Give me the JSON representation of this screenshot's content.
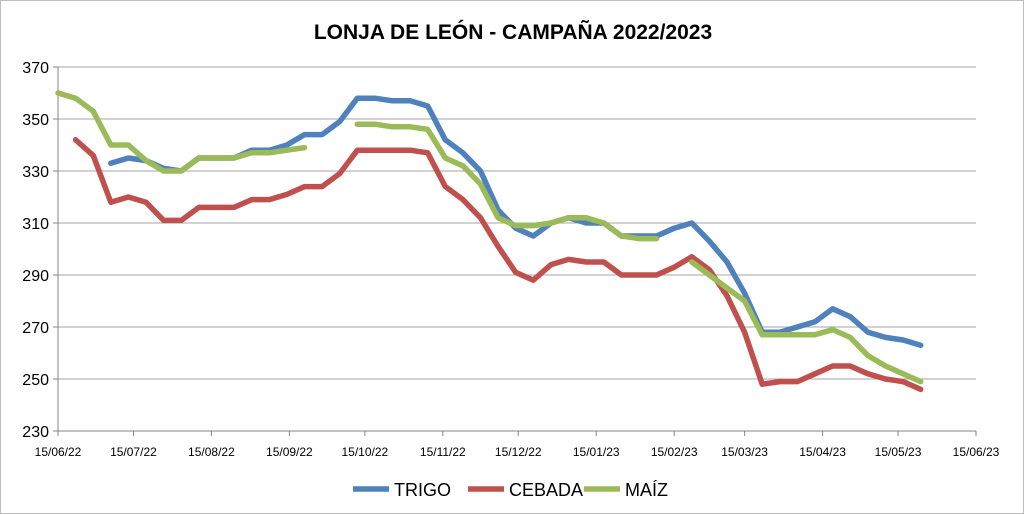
{
  "chart_data": {
    "type": "line",
    "title": "LONJA DE LEÓN - CAMPAÑA 2022/2023",
    "xlabel": "",
    "ylabel": "",
    "x_axis": {
      "type": "date",
      "range": [
        "2022-06-15",
        "2023-06-15"
      ],
      "ticks": [
        "2022-06-15",
        "2022-07-15",
        "2022-08-15",
        "2022-09-15",
        "2022-10-15",
        "2022-11-15",
        "2022-12-15",
        "2023-01-15",
        "2023-02-15",
        "2023-03-15",
        "2023-04-15",
        "2023-05-15",
        "2023-06-15"
      ],
      "tick_labels": [
        "15/06/22",
        "15/07/22",
        "15/08/22",
        "15/09/22",
        "15/10/22",
        "15/11/22",
        "15/12/22",
        "15/01/23",
        "15/02/23",
        "15/03/23",
        "15/04/23",
        "15/05/23",
        "15/06/23"
      ]
    },
    "y_axis": {
      "range": [
        230,
        370
      ],
      "ticks": [
        230,
        250,
        270,
        290,
        310,
        330,
        350,
        370
      ]
    },
    "grid": "horizontal",
    "legend_position": "bottom",
    "series": [
      {
        "name": "TRIGO",
        "color": "#4f81bd",
        "points": [
          [
            "2022-07-06",
            333
          ],
          [
            "2022-07-13",
            335
          ],
          [
            "2022-07-20",
            334
          ],
          [
            "2022-07-27",
            331
          ],
          [
            "2022-08-03",
            330
          ],
          [
            "2022-08-10",
            335
          ],
          [
            "2022-08-17",
            335
          ],
          [
            "2022-08-24",
            335
          ],
          [
            "2022-08-31",
            338
          ],
          [
            "2022-09-07",
            338
          ],
          [
            "2022-09-14",
            340
          ],
          [
            "2022-09-21",
            344
          ],
          [
            "2022-09-28",
            344
          ],
          [
            "2022-10-05",
            349
          ],
          [
            "2022-10-12",
            358
          ],
          [
            "2022-10-19",
            358
          ],
          [
            "2022-10-26",
            357
          ],
          [
            "2022-11-02",
            357
          ],
          [
            "2022-11-09",
            355
          ],
          [
            "2022-11-16",
            342
          ],
          [
            "2022-11-23",
            337
          ],
          [
            "2022-11-30",
            330
          ],
          [
            "2022-12-07",
            315
          ],
          [
            "2022-12-14",
            308
          ],
          [
            "2022-12-21",
            305
          ],
          [
            "2022-12-28",
            310
          ],
          [
            "2023-01-04",
            312
          ],
          [
            "2023-01-11",
            310
          ],
          [
            "2023-01-18",
            310
          ],
          [
            "2023-01-25",
            305
          ],
          [
            "2023-02-01",
            305
          ],
          [
            "2023-02-08",
            305
          ],
          [
            "2023-02-15",
            308
          ],
          [
            "2023-02-22",
            310
          ],
          [
            "2023-03-01",
            303
          ],
          [
            "2023-03-08",
            295
          ],
          [
            "2023-03-15",
            283
          ],
          [
            "2023-03-22",
            268
          ],
          [
            "2023-03-29",
            268
          ],
          [
            "2023-04-05",
            270
          ],
          [
            "2023-04-12",
            272
          ],
          [
            "2023-04-19",
            277
          ],
          [
            "2023-04-26",
            274
          ],
          [
            "2023-05-03",
            268
          ],
          [
            "2023-05-10",
            266
          ],
          [
            "2023-05-17",
            265
          ],
          [
            "2023-05-24",
            263
          ]
        ]
      },
      {
        "name": "CEBADA",
        "color": "#c0504d",
        "points": [
          [
            "2022-06-22",
            342
          ],
          [
            "2022-06-29",
            336
          ],
          [
            "2022-07-06",
            318
          ],
          [
            "2022-07-13",
            320
          ],
          [
            "2022-07-20",
            318
          ],
          [
            "2022-07-27",
            311
          ],
          [
            "2022-08-03",
            311
          ],
          [
            "2022-08-10",
            316
          ],
          [
            "2022-08-17",
            316
          ],
          [
            "2022-08-24",
            316
          ],
          [
            "2022-08-31",
            319
          ],
          [
            "2022-09-07",
            319
          ],
          [
            "2022-09-14",
            321
          ],
          [
            "2022-09-21",
            324
          ],
          [
            "2022-09-28",
            324
          ],
          [
            "2022-10-05",
            329
          ],
          [
            "2022-10-12",
            338
          ],
          [
            "2022-10-19",
            338
          ],
          [
            "2022-10-26",
            338
          ],
          [
            "2022-11-02",
            338
          ],
          [
            "2022-11-09",
            337
          ],
          [
            "2022-11-16",
            324
          ],
          [
            "2022-11-23",
            319
          ],
          [
            "2022-11-30",
            312
          ],
          [
            "2022-12-07",
            301
          ],
          [
            "2022-12-14",
            291
          ],
          [
            "2022-12-21",
            288
          ],
          [
            "2022-12-28",
            294
          ],
          [
            "2023-01-04",
            296
          ],
          [
            "2023-01-11",
            295
          ],
          [
            "2023-01-18",
            295
          ],
          [
            "2023-01-25",
            290
          ],
          [
            "2023-02-01",
            290
          ],
          [
            "2023-02-08",
            290
          ],
          [
            "2023-02-15",
            293
          ],
          [
            "2023-02-22",
            297
          ],
          [
            "2023-03-01",
            292
          ],
          [
            "2023-03-08",
            282
          ],
          [
            "2023-03-15",
            268
          ],
          [
            "2023-03-22",
            248
          ],
          [
            "2023-03-29",
            249
          ],
          [
            "2023-04-05",
            249
          ],
          [
            "2023-04-12",
            252
          ],
          [
            "2023-04-19",
            255
          ],
          [
            "2023-04-26",
            255
          ],
          [
            "2023-05-03",
            252
          ],
          [
            "2023-05-10",
            250
          ],
          [
            "2023-05-17",
            249
          ],
          [
            "2023-05-24",
            246
          ]
        ]
      },
      {
        "name": "MAÍZ",
        "color": "#9bbb59",
        "segments": [
          [
            [
              "2022-06-15",
              360
            ],
            [
              "2022-06-22",
              358
            ],
            [
              "2022-06-29",
              353
            ],
            [
              "2022-07-06",
              340
            ],
            [
              "2022-07-13",
              340
            ],
            [
              "2022-07-20",
              334
            ],
            [
              "2022-07-27",
              330
            ],
            [
              "2022-08-03",
              330
            ],
            [
              "2022-08-10",
              335
            ],
            [
              "2022-08-17",
              335
            ],
            [
              "2022-08-24",
              335
            ],
            [
              "2022-08-31",
              337
            ],
            [
              "2022-09-07",
              337
            ],
            [
              "2022-09-14",
              338
            ],
            [
              "2022-09-21",
              339
            ]
          ],
          [
            [
              "2022-10-12",
              348
            ],
            [
              "2022-10-19",
              348
            ],
            [
              "2022-10-26",
              347
            ],
            [
              "2022-11-02",
              347
            ],
            [
              "2022-11-09",
              346
            ],
            [
              "2022-11-16",
              335
            ],
            [
              "2022-11-23",
              332
            ],
            [
              "2022-11-30",
              325
            ],
            [
              "2022-12-07",
              312
            ],
            [
              "2022-12-14",
              309
            ],
            [
              "2022-12-21",
              309
            ],
            [
              "2022-12-28",
              310
            ],
            [
              "2023-01-04",
              312
            ],
            [
              "2023-01-11",
              312
            ],
            [
              "2023-01-18",
              310
            ],
            [
              "2023-01-25",
              305
            ],
            [
              "2023-02-01",
              304
            ],
            [
              "2023-02-08",
              304
            ]
          ],
          [
            [
              "2023-02-22",
              295
            ],
            [
              "2023-03-01",
              290
            ],
            [
              "2023-03-08",
              285
            ],
            [
              "2023-03-15",
              280
            ],
            [
              "2023-03-22",
              267
            ],
            [
              "2023-03-29",
              267
            ],
            [
              "2023-04-05",
              267
            ],
            [
              "2023-04-12",
              267
            ],
            [
              "2023-04-19",
              269
            ],
            [
              "2023-04-26",
              266
            ],
            [
              "2023-05-03",
              259
            ],
            [
              "2023-05-10",
              255
            ],
            [
              "2023-05-17",
              252
            ],
            [
              "2023-05-24",
              249
            ]
          ]
        ]
      }
    ]
  }
}
